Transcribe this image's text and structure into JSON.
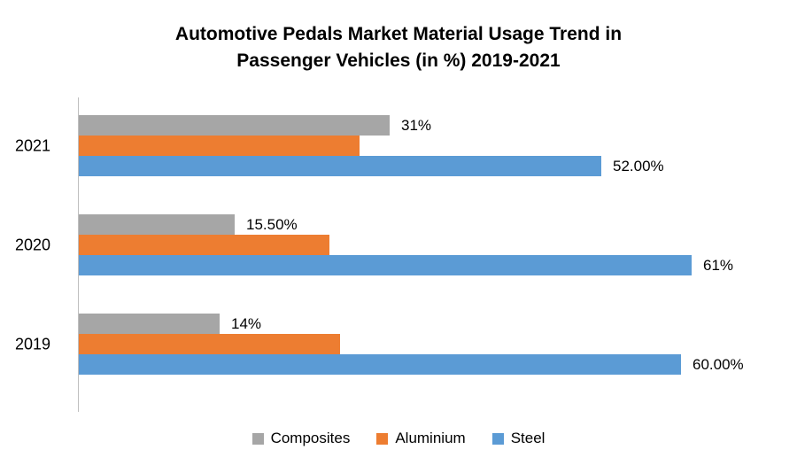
{
  "title": {
    "line1": "Automotive Pedals Market Material Usage Trend in",
    "line2": "Passenger Vehicles (in %) 2019-2021"
  },
  "chart_data": {
    "type": "bar",
    "orientation": "horizontal",
    "title": "Automotive Pedals Market Material Usage Trend in Passenger Vehicles (in %) 2019-2021",
    "categories": [
      "2021",
      "2020",
      "2019"
    ],
    "series": [
      {
        "name": "Composites",
        "color": "#a6a6a6",
        "values": [
          31,
          15.5,
          14
        ],
        "labels": [
          "31%",
          "15.50%",
          "14%"
        ]
      },
      {
        "name": "Aluminium",
        "color": "#ed7d31",
        "values": [
          28,
          25,
          26
        ],
        "labels": [
          "",
          "",
          ""
        ]
      },
      {
        "name": "Steel",
        "color": "#5b9bd5",
        "values": [
          52,
          61,
          60
        ],
        "labels": [
          "52.00%",
          "61%",
          "60.00%"
        ]
      }
    ],
    "xlim": [
      0,
      65
    ],
    "grid": false,
    "legend_position": "bottom",
    "axis_color": "#bfbfbf"
  }
}
